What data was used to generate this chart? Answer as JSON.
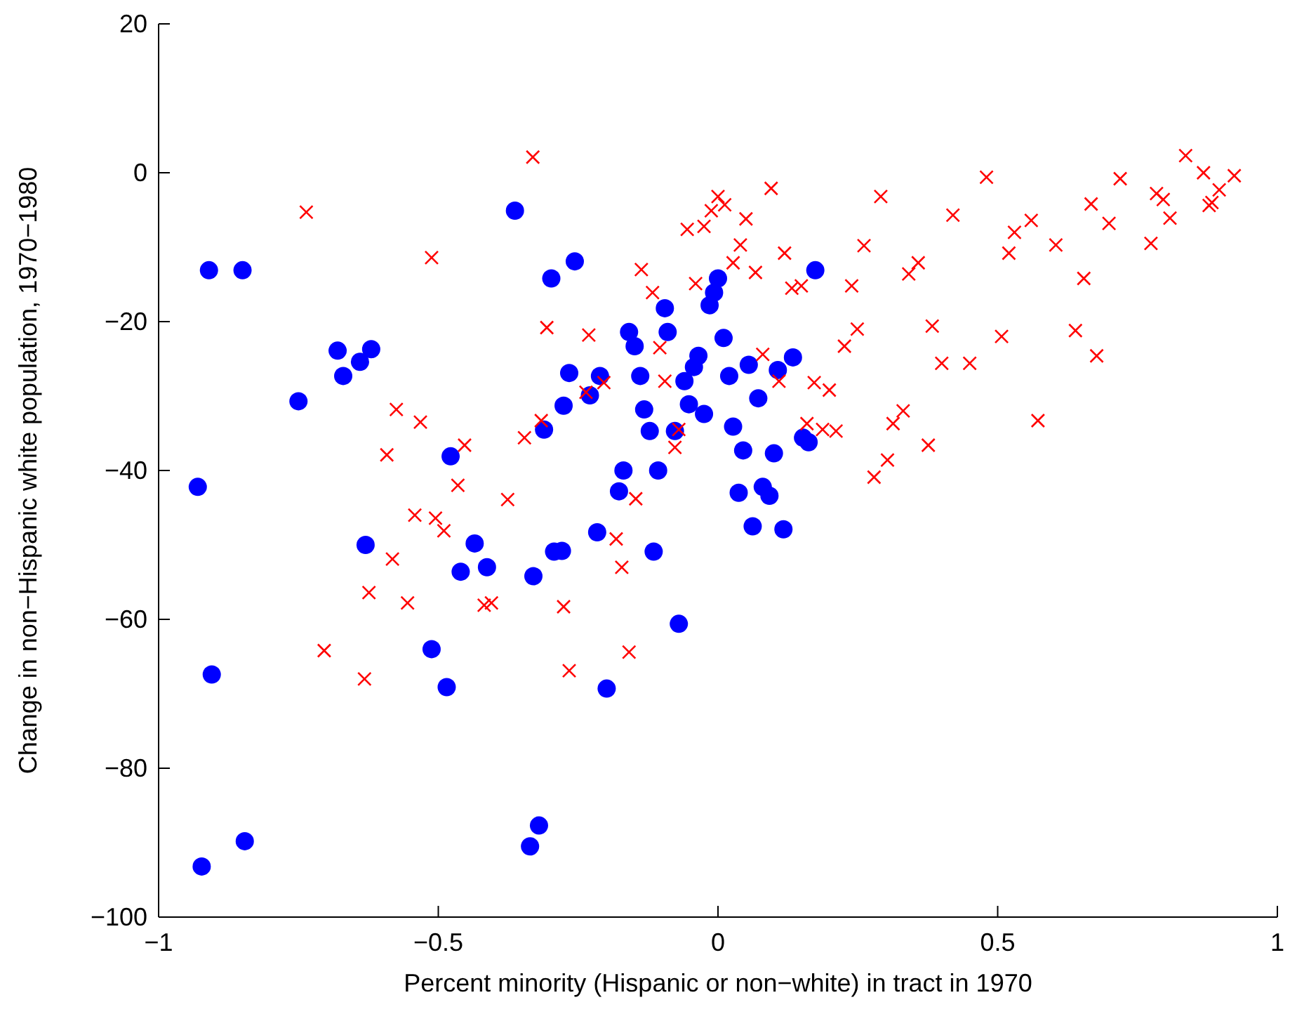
{
  "chart_data": {
    "type": "scatter",
    "xlabel": "Percent minority (Hispanic or non−white) in tract in 1970",
    "ylabel": "Change in non−Hispanic white population, 1970−1980",
    "xlim": [
      -1,
      1
    ],
    "ylim": [
      -100,
      20
    ],
    "xticks": [
      -1,
      -0.5,
      0,
      0.5,
      1
    ],
    "yticks": [
      -100,
      -80,
      -60,
      -40,
      -20,
      0,
      20
    ],
    "series": [
      {
        "color": "#0000ff",
        "marker": "circle",
        "x": [
          -0.93,
          -0.91,
          -0.85,
          -0.905,
          -0.923,
          -0.846,
          -0.75,
          -0.68,
          -0.62,
          -0.64,
          -0.67,
          -0.363,
          -0.478,
          -0.63,
          -0.435,
          -0.46,
          -0.413,
          -0.33,
          -0.512,
          -0.485,
          -0.32,
          -0.336,
          -0.216,
          -0.293,
          -0.279,
          -0.115,
          -0.07,
          -0.199,
          0.062,
          0.117,
          -0.256,
          -0.298,
          0.174,
          0,
          -0.007,
          -0.015,
          -0.095,
          -0.09,
          -0.159,
          -0.149,
          0.01,
          -0.035,
          -0.043,
          0.134,
          0.107,
          0.055,
          0.02,
          -0.06,
          -0.139,
          -0.211,
          -0.266,
          -0.229,
          -0.276,
          0.072,
          -0.132,
          -0.052,
          -0.025,
          -0.311,
          -0.122,
          -0.077,
          0.027,
          0.152,
          0.162,
          0.045,
          0.1,
          -0.169,
          -0.107,
          -0.177,
          0.037,
          0.08,
          0.092
        ],
        "values": [
          -42.2,
          -13.1,
          -13.1,
          -67.4,
          -93.2,
          -89.8,
          -30.7,
          -23.9,
          -23.7,
          -25.4,
          -27.3,
          -5.1,
          -38.1,
          -50,
          -49.8,
          -53.6,
          -53,
          -54.2,
          -64,
          -69.1,
          -87.7,
          -90.5,
          -48.3,
          -50.9,
          -50.8,
          -50.9,
          -60.6,
          -69.3,
          -47.5,
          -47.9,
          -11.9,
          -14.2,
          -13.1,
          -14.2,
          -16.1,
          -17.8,
          -18.2,
          -21.4,
          -21.4,
          -23.3,
          -22.2,
          -24.6,
          -26.1,
          -24.8,
          -26.5,
          -25.8,
          -27.3,
          -28,
          -27.3,
          -27.3,
          -26.9,
          -29.9,
          -31.3,
          -30.3,
          -31.8,
          -31.1,
          -32.4,
          -34.5,
          -34.7,
          -34.7,
          -34.1,
          -35.6,
          -36.2,
          -37.3,
          -37.7,
          -40,
          -40,
          -42.8,
          -43,
          -42.2,
          -43.4
        ]
      },
      {
        "color": "#ff0000",
        "marker": "cross",
        "x": [
          -0.736,
          -0.512,
          -0.331,
          -0.575,
          -0.532,
          -0.592,
          -0.453,
          -0.346,
          -0.465,
          -0.376,
          -0.542,
          -0.505,
          -0.49,
          -0.582,
          -0.624,
          -0.555,
          -0.418,
          -0.405,
          -0.704,
          -0.632,
          -0.182,
          -0.172,
          -0.276,
          -0.159,
          -0.266,
          0,
          0.012,
          -0.012,
          0.095,
          0.291,
          0.05,
          -0.025,
          -0.055,
          0.04,
          0.261,
          0.119,
          0.027,
          -0.137,
          0.067,
          -0.04,
          0.132,
          0.149,
          0.239,
          -0.117,
          -0.306,
          -0.231,
          0.249,
          0.226,
          -0.104,
          0.08,
          -0.204,
          -0.236,
          -0.095,
          0.109,
          0.172,
          0.199,
          -0.316,
          -0.07,
          -0.077,
          0.159,
          0.187,
          0.211,
          0.313,
          0.303,
          0.279,
          -0.147,
          0.48,
          0.836,
          0.868,
          0.923,
          0.896,
          0.883,
          0.878,
          0.719,
          0.784,
          0.796,
          0.808,
          0.667,
          0.699,
          0.774,
          0.42,
          0.56,
          0.53,
          0.52,
          0.604,
          0.654,
          0.358,
          0.341,
          0.383,
          0.507,
          0.639,
          0.677,
          0.4,
          0.45,
          0.331,
          0.572,
          0.376
        ],
        "values": [
          -5.3,
          -11.4,
          2.1,
          -31.8,
          -33.5,
          -37.9,
          -36.6,
          -35.6,
          -42,
          -43.9,
          -46,
          -46.4,
          -48.1,
          -51.9,
          -56.4,
          -57.8,
          -58.1,
          -57.8,
          -64.2,
          -68,
          -49.2,
          -53,
          -58.3,
          -64.4,
          -66.9,
          -3.2,
          -4.3,
          -5.1,
          -2.1,
          -3.2,
          -6.2,
          -7.2,
          -7.6,
          -9.7,
          -9.8,
          -10.8,
          -12.1,
          -13,
          -13.4,
          -14.9,
          -15.5,
          -15.2,
          -15.2,
          -16.1,
          -20.8,
          -21.8,
          -21,
          -23.3,
          -23.5,
          -24.4,
          -28.2,
          -29.5,
          -28,
          -28,
          -28.2,
          -29.2,
          -33.3,
          -34.5,
          -36.9,
          -33.7,
          -34.5,
          -34.7,
          -33.7,
          -38.6,
          -40.9,
          -43.8,
          -0.6,
          2.3,
          0,
          -0.4,
          -2.3,
          -4,
          -4.4,
          -0.8,
          -2.8,
          -3.6,
          -6.1,
          -4.2,
          -6.8,
          -9.5,
          -5.7,
          -6.4,
          -8,
          -10.8,
          -9.7,
          -14.2,
          -12.1,
          -13.6,
          -20.6,
          -22,
          -21.2,
          -24.6,
          -25.6,
          -25.6,
          -32,
          -33.3,
          -36.6
        ]
      }
    ]
  }
}
